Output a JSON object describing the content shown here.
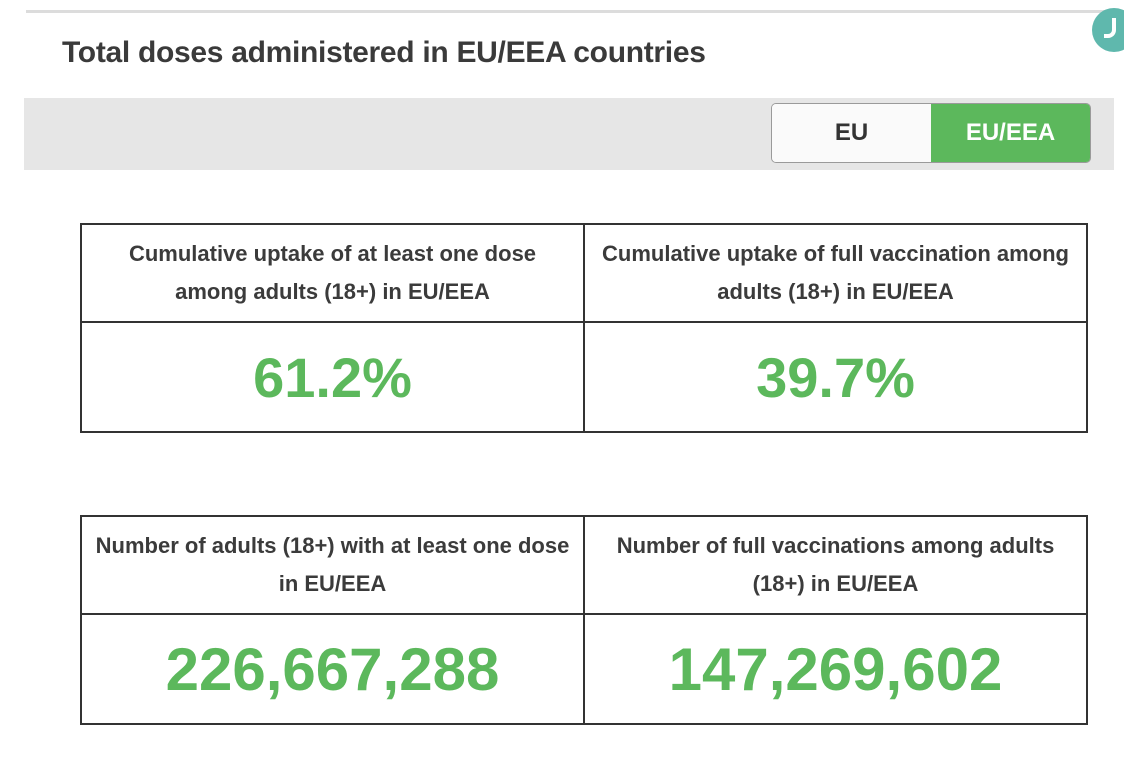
{
  "title": "Total doses administered in EU/EEA countries",
  "toggle": {
    "options": [
      "EU",
      "EU/EEA"
    ],
    "selected": "EU/EEA"
  },
  "stats": [
    {
      "label": "Cumulative uptake of at least one dose among adults (18+) in EU/EEA",
      "value": "61.2%"
    },
    {
      "label": "Cumulative uptake of full vaccination among adults (18+) in EU/EEA",
      "value": "39.7%"
    },
    {
      "label": "Number of adults (18+) with at least one dose in EU/EEA",
      "value": "226,667,288"
    },
    {
      "label": "Number of full vaccinations among adults (18+) in EU/EEA",
      "value": "147,269,602"
    }
  ],
  "colors": {
    "accent": "#5cb85c",
    "toolbar_bg": "#e6e6e6",
    "text": "#3a3a3a"
  }
}
